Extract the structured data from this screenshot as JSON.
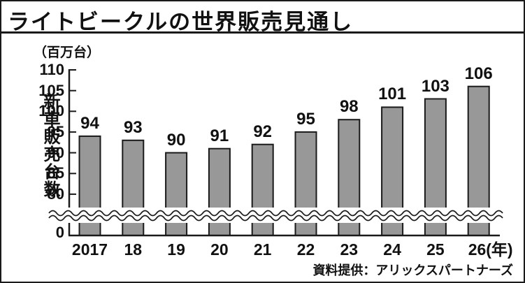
{
  "figure": {
    "background": "#ffffff",
    "frame_color": "#1a1a1a"
  },
  "header": {
    "title": "ライトビークルの世界販売見通し"
  },
  "chart_data": {
    "type": "bar",
    "title": "ライトビークルの世界販売見通し",
    "unit_label": "（百万台）",
    "y_axis_title": "新車販売台数",
    "categories": [
      "2017",
      "18",
      "19",
      "20",
      "21",
      "22",
      "23",
      "24",
      "25",
      "26"
    ],
    "last_category_suffix": "(年)",
    "values": [
      94,
      93,
      90,
      91,
      92,
      95,
      98,
      101,
      103,
      106
    ],
    "y_ticks": [
      110,
      105,
      100,
      95,
      90,
      85,
      80
    ],
    "y_origin_label": "0",
    "ylim_displayed": [
      80,
      110
    ],
    "axis_break": true,
    "grid": false,
    "legend": "none",
    "bar_color": "#989898",
    "bar_border_color": "#1a1a1a",
    "axis_color": "#1a1a1a"
  },
  "footer": {
    "source": "資料提供：アリックスパートナーズ"
  }
}
